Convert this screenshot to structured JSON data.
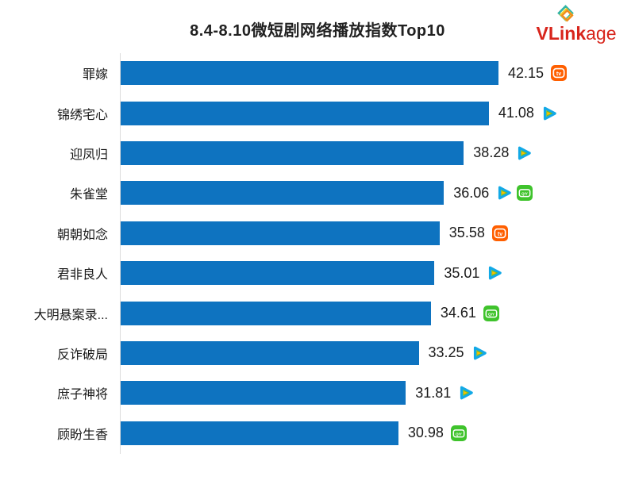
{
  "title": "8.4-8.10微短剧网络播放指数Top10",
  "logo": {
    "brand_bold": "VLink",
    "brand_light": "age",
    "color": "#D8251C"
  },
  "colors": {
    "bar": "#0E73C0",
    "axis_line": "#DCDCDC",
    "text": "#1A1A1A",
    "mgtv_orange": "#FF5F00",
    "tencent_blue": "#12A9E6",
    "iqiyi_green": "#3FC32C"
  },
  "chart_data": {
    "type": "bar",
    "orientation": "horizontal",
    "title": "8.4-8.10微短剧网络播放指数Top10",
    "xlabel": "",
    "ylabel": "",
    "value_range": [
      0,
      42.15
    ],
    "grid": false,
    "legend_position": "none",
    "categories": [
      "罪嫁",
      "锦绣宅心",
      "迎凤归",
      "朱雀堂",
      "朝朝如念",
      "君非良人",
      "大明悬案录...",
      "反诈破局",
      "庶子神将",
      "顾盼生香"
    ],
    "values": [
      42.15,
      41.08,
      38.28,
      36.06,
      35.58,
      35.01,
      34.61,
      33.25,
      31.81,
      30.98
    ],
    "platform_icons": [
      [
        "mgtv"
      ],
      [
        "tencent-video"
      ],
      [
        "tencent-video"
      ],
      [
        "tencent-video",
        "iqiyi"
      ],
      [
        "mgtv"
      ],
      [
        "tencent-video"
      ],
      [
        "iqiyi"
      ],
      [
        "tencent-video"
      ],
      [
        "tencent-video"
      ],
      [
        "iqiyi"
      ]
    ]
  }
}
